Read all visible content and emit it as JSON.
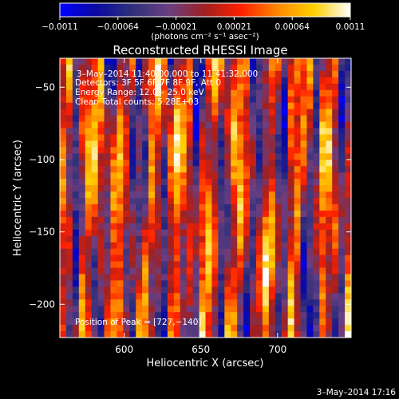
{
  "chart_data": {
    "type": "heatmap",
    "title": "Reconstructed RHESSI Image",
    "xlabel": "Heliocentric X (arcsec)",
    "ylabel": "Heliocentric Y (arcsec)",
    "xlim": [
      558,
      748
    ],
    "ylim": [
      -223,
      -30
    ],
    "x_ticks": [
      600,
      650,
      700
    ],
    "y_ticks": [
      -50,
      -100,
      -150,
      -200
    ],
    "x_tick_labels": [
      "600",
      "650",
      "700"
    ],
    "y_tick_labels": [
      "−50",
      "−100",
      "−150",
      "−200"
    ],
    "colorbar": {
      "min": -0.0011,
      "max": 0.0011,
      "ticks": [
        "−0.0011",
        "−0.00064",
        "−0.00021",
        "0.00021",
        "0.00064",
        "0.0011"
      ],
      "label": "(photons cm⁻² s⁻¹ asec⁻²)"
    },
    "annotations": {
      "time_range": "3–May–2014 11:40:00.000 to 11:41:32.000",
      "detectors": "Detectors: 3F 5F 6F 7F 8F 9F, Att 0",
      "energy": "Energy Range: 12.0 – 25.0 keV",
      "clean": "Clean    Total counts: 5.28E+03",
      "peak": "Position of Peak = [727,−140]"
    },
    "peak_position": [
      727,
      -140
    ],
    "colormap": [
      "#0000ff",
      "#0a0aa0",
      "#30307a",
      "#6a3f82",
      "#a02020",
      "#ff2000",
      "#ff8800",
      "#ffd000",
      "#ffffff"
    ]
  },
  "footer": {
    "timestamp": "3–May–2014 17:16"
  }
}
